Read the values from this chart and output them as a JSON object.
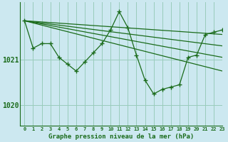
{
  "title": "Graphe pression niveau de la mer (hPa)",
  "background_color": "#cce8f0",
  "grid_color": "#99ccbb",
  "line_color": "#1a6b1a",
  "xlim": [
    -0.5,
    23
  ],
  "ylim": [
    1019.55,
    1022.25
  ],
  "yticks": [
    1020,
    1021
  ],
  "xticks": [
    0,
    1,
    2,
    3,
    4,
    5,
    6,
    7,
    8,
    9,
    10,
    11,
    12,
    13,
    14,
    15,
    16,
    17,
    18,
    19,
    20,
    21,
    22,
    23
  ],
  "series": [
    {
      "x": [
        0,
        1,
        2,
        3,
        4,
        5,
        6,
        7,
        8,
        9,
        10,
        11,
        12,
        13,
        14,
        15,
        16,
        17,
        18,
        19,
        20,
        21,
        22,
        23
      ],
      "y": [
        1021.85,
        1021.25,
        1021.35,
        1021.35,
        1021.05,
        1020.9,
        1020.75,
        1020.95,
        1021.15,
        1021.35,
        1021.65,
        1022.05,
        1021.7,
        1021.1,
        1020.55,
        1020.25,
        1020.35,
        1020.4,
        1020.45,
        1021.05,
        1021.1,
        1021.55,
        1021.6,
        1021.65
      ]
    },
    {
      "x": [
        0,
        23
      ],
      "y": [
        1021.85,
        1021.55
      ]
    },
    {
      "x": [
        0,
        23
      ],
      "y": [
        1021.85,
        1021.3
      ]
    },
    {
      "x": [
        0,
        23
      ],
      "y": [
        1021.85,
        1021.05
      ]
    },
    {
      "x": [
        0,
        23
      ],
      "y": [
        1021.85,
        1020.75
      ]
    }
  ],
  "marker_series_idx": 0
}
